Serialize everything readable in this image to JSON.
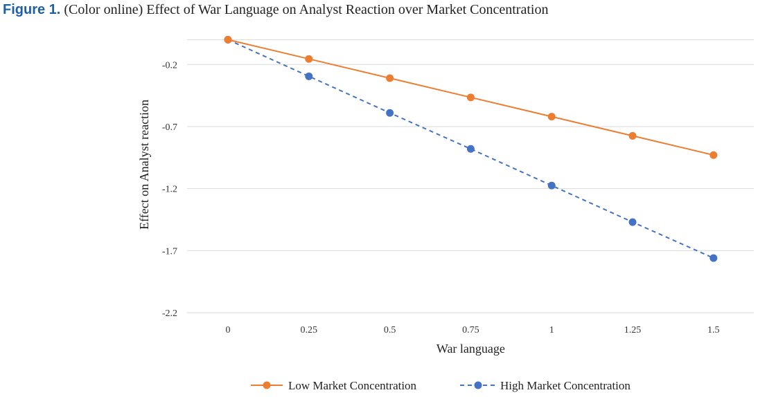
{
  "figure": {
    "label": "Figure 1.",
    "caption": "(Color online) Effect of War Language on Analyst Reaction over Market Concentration"
  },
  "chart_data": {
    "type": "line",
    "x": [
      0,
      0.25,
      0.5,
      0.75,
      1,
      1.25,
      1.5
    ],
    "x_tick_labels": [
      "0",
      "0.25",
      "0.5",
      "0.75",
      "1",
      "1.25",
      "1.5"
    ],
    "y_ticks": [
      -0.2,
      -0.7,
      -1.2,
      -1.7,
      -2.2
    ],
    "y_tick_labels": [
      "-0.2",
      "-0.7",
      "-1.2",
      "-1.7",
      "-2.2"
    ],
    "ylim": [
      -2.2,
      0
    ],
    "xlabel": "War language",
    "ylabel": "Effect on Analyst reaction",
    "grid": "horizontal",
    "legend_position": "bottom",
    "series": [
      {
        "name": "Low Market Concentration",
        "values": [
          0,
          -0.155,
          -0.31,
          -0.465,
          -0.62,
          -0.775,
          -0.93
        ],
        "color": "#ed7d31",
        "style": "solid"
      },
      {
        "name": "High Market Concentration",
        "values": [
          0,
          -0.295,
          -0.59,
          -0.88,
          -1.175,
          -1.47,
          -1.76
        ],
        "color": "#4472c4",
        "style": "dashed"
      }
    ]
  }
}
